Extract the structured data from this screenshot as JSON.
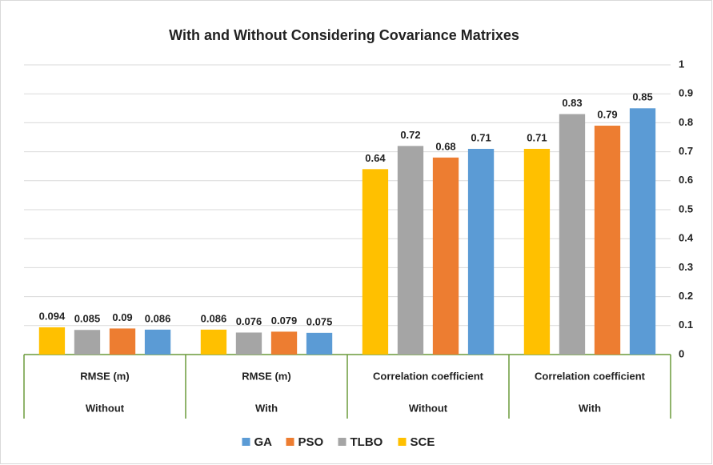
{
  "chart_data": {
    "type": "bar",
    "title": "With and Without Considering Covariance Matrixes",
    "categories": [
      [
        "RMSE (m)",
        "Without"
      ],
      [
        "RMSE (m)",
        "With"
      ],
      [
        "Correlation coefficient",
        "Without"
      ],
      [
        "Correlation coefficient",
        "With"
      ]
    ],
    "series": [
      {
        "name": "GA",
        "color": "#5b9bd5",
        "values": [
          0.086,
          0.075,
          0.71,
          0.85
        ]
      },
      {
        "name": "PSO",
        "color": "#ed7d31",
        "values": [
          0.09,
          0.079,
          0.68,
          0.79
        ]
      },
      {
        "name": "TLBO",
        "color": "#a5a5a5",
        "values": [
          0.085,
          0.076,
          0.72,
          0.83
        ]
      },
      {
        "name": "SCE",
        "color": "#ffc000",
        "values": [
          0.094,
          0.086,
          0.64,
          0.71
        ]
      }
    ],
    "ylim": [
      0,
      1
    ],
    "yticks": [
      0,
      0.1,
      0.2,
      0.3,
      0.4,
      0.5,
      0.6,
      0.7,
      0.8,
      0.9,
      1
    ],
    "grid": true,
    "legend": "bottom"
  }
}
